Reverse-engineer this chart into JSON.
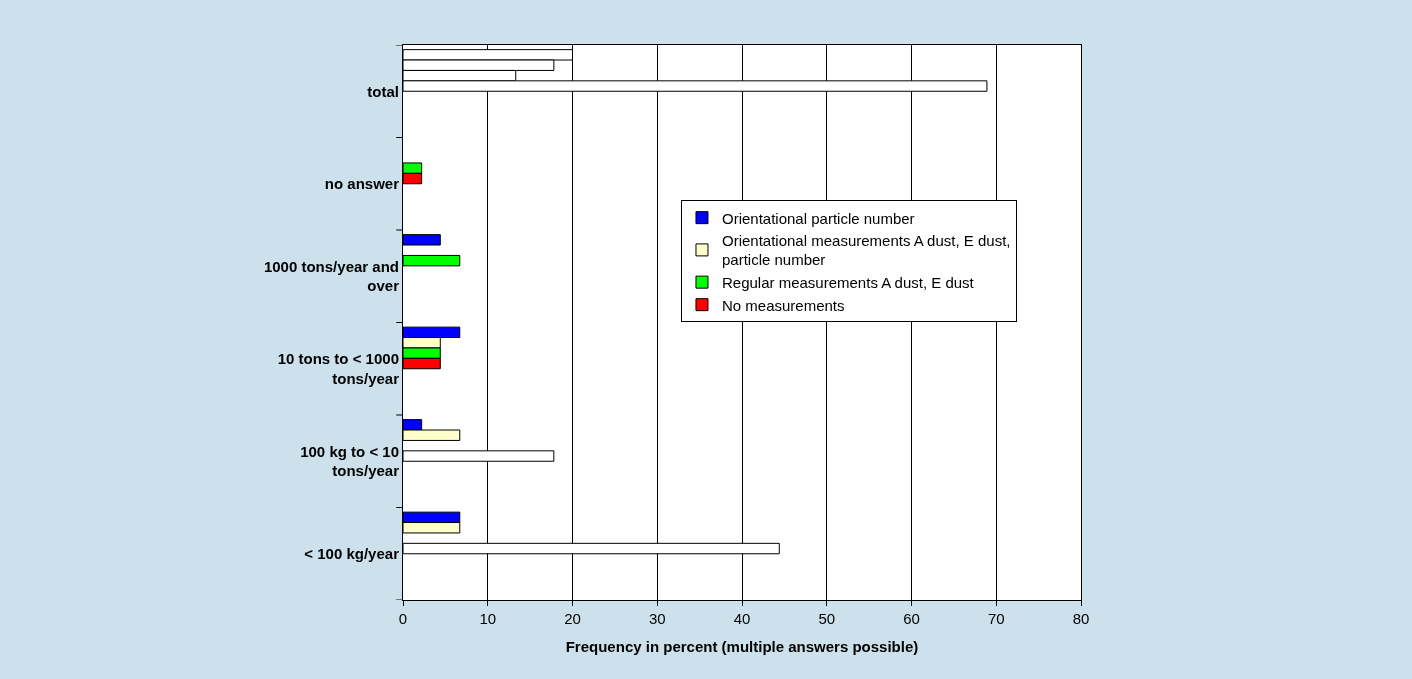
{
  "chart_data": {
    "type": "bar",
    "orientation": "horizontal",
    "xlabel": "Frequency in percent (multiple answers possible)",
    "categories": [
      "total",
      "no answer",
      "1000 tons/year and over",
      "10 tons to < 1000 tons/year",
      "100 kg to < 10 tons/year",
      "< 100 kg/year"
    ],
    "series": [
      {
        "name": "Orientational particle number",
        "color": "#0000ff",
        "colors": [
          "#ffffff",
          "#0000ff",
          "#0000ff",
          "#0000ff",
          "#0000ff",
          "#0000ff"
        ],
        "values": [
          20,
          null,
          4.4,
          6.7,
          2.2,
          6.7
        ]
      },
      {
        "name": "Orientational measurements A dust, E dust, particle number",
        "color": "#ffffcc",
        "colors": [
          "#ffffff",
          "#ffffcc",
          "#ffffcc",
          "#ffffcc",
          "#ffffcc",
          "#ffffcc"
        ],
        "values": [
          17.8,
          null,
          null,
          4.4,
          6.7,
          6.7
        ]
      },
      {
        "name": "Regular measurements A dust, E dust",
        "color": "#00ff00",
        "colors": [
          "#ffffff",
          "#00ff00",
          "#00ff00",
          "#00ff00",
          "#00ff00",
          "#00ff00"
        ],
        "values": [
          13.3,
          2.2,
          6.7,
          4.4,
          null,
          null
        ]
      },
      {
        "name": "No measurements",
        "color": "#ff0000",
        "colors": [
          "#ffffff",
          "#ff0000",
          "#ff0000",
          "#ff0000",
          "#ffffff",
          "#ffffff"
        ],
        "values": [
          68.9,
          2.2,
          null,
          4.4,
          17.8,
          44.4
        ]
      }
    ],
    "xlim": [
      0,
      80
    ],
    "xticks": [
      0,
      10,
      20,
      30,
      40,
      50,
      60,
      70,
      80
    ],
    "grid": "x",
    "legend": "right"
  }
}
